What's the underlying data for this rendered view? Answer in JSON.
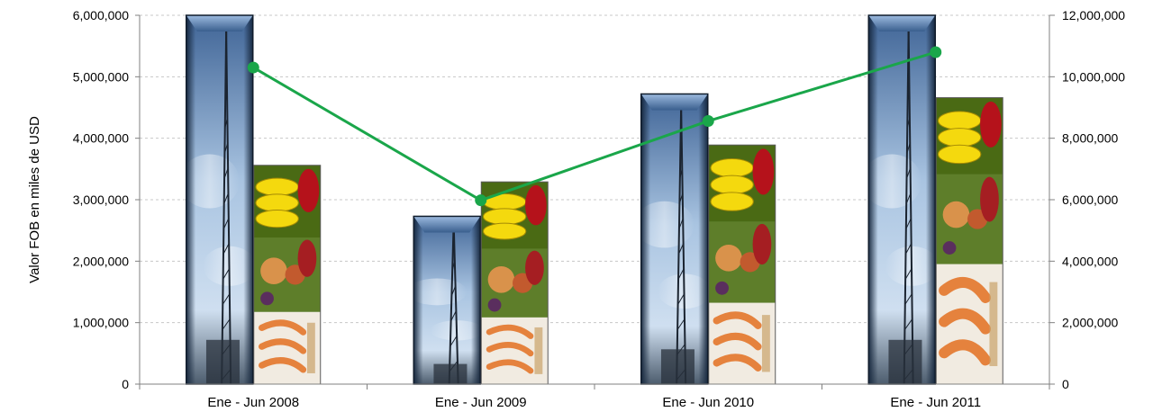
{
  "chart_data": {
    "type": "bar",
    "categories": [
      "Ene - Jun 2008",
      "Ene - Jun 2009",
      "Ene - Jun 2010",
      "Ene - Jun 2011"
    ],
    "ylabel": "Valor FOB  en miles de USD",
    "ylim": [
      0,
      6000000
    ],
    "y2lim": [
      0,
      12000000
    ],
    "yticks": [
      "0",
      "1,000,000",
      "2,000,000",
      "3,000,000",
      "4,000,000",
      "5,000,000",
      "6,000,000"
    ],
    "y2ticks": [
      "0",
      "2,000,000",
      "4,000,000",
      "6,000,000",
      "8,000,000",
      "10,000,000",
      "12,000,000"
    ],
    "grid": true,
    "series": [
      {
        "type": "bar",
        "axis": "left",
        "picture": "oil-platform",
        "values": [
          6000000,
          2730000,
          4720000,
          6000000
        ]
      },
      {
        "type": "bar",
        "axis": "left",
        "picture": "food-products",
        "values": [
          3560000,
          3290000,
          3890000,
          4660000
        ]
      },
      {
        "type": "line",
        "axis": "right",
        "color": "#1aa64a",
        "values": [
          10300000,
          5980000,
          8560000,
          10800000
        ]
      }
    ]
  }
}
